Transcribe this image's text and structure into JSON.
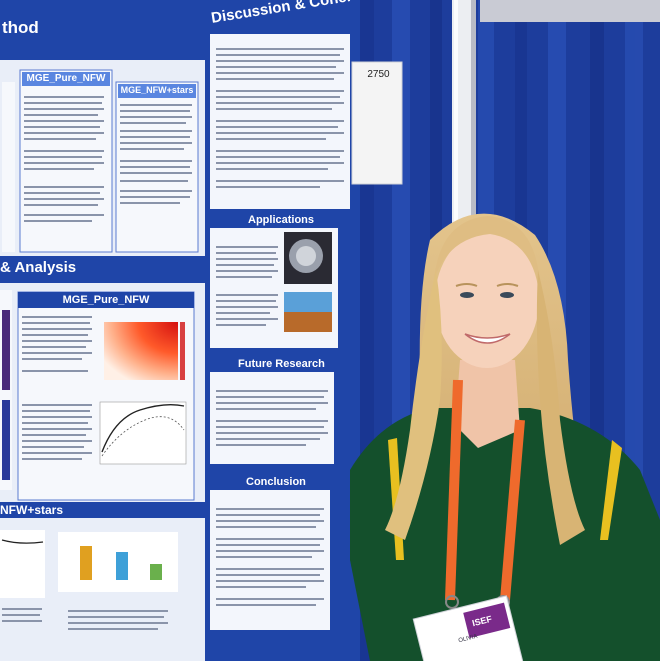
{
  "poster": {
    "sections": {
      "method": "thod",
      "discussion": "Discussion & Concl",
      "results": "& Analysis",
      "applications": "Applications",
      "future_research": "Future Research",
      "conclusion": "Conclusion",
      "nfw_stars_bottom": "NFW+stars"
    },
    "panels": {
      "mge_pure_nfw_top": "MGE_Pure_NFW",
      "mge_nfw_stars_top": "MGE_NFW+stars",
      "mge_pure_nfw_results": "MGE_Pure_NFW"
    }
  },
  "booth_sign": {
    "number": "2750"
  },
  "badge": {
    "name": "OLIVIA",
    "event": "ISEF"
  },
  "colors": {
    "poster_blue": "#1f45a8",
    "curtain_blue": "#1e3fa0",
    "lanyard": "#ef6a2c",
    "shirt": "#14502c"
  }
}
